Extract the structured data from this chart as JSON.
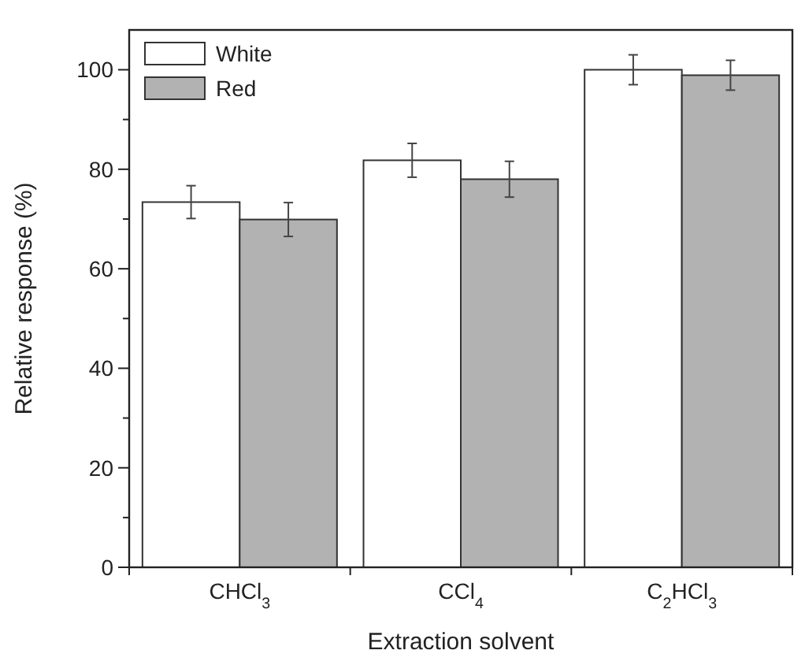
{
  "chart_data": {
    "type": "bar",
    "xlabel": "Extraction solvent",
    "ylabel": "Relative response (%)",
    "categories": [
      "CHCl$_{3}$",
      "CCl$_{4}$",
      "C$_{2}$HCl$_{3}$"
    ],
    "series": [
      {
        "name": "White",
        "color": "#ffffff",
        "values": [
          73.4,
          81.8,
          100
        ],
        "errors": [
          3.3,
          3.4,
          3
        ]
      },
      {
        "name": "Red",
        "color": "#b2b2b2",
        "values": [
          69.9,
          78,
          98.9
        ],
        "errors": [
          3.4,
          3.6,
          3
        ]
      }
    ],
    "ylim": [
      0,
      108
    ],
    "yticks": [
      0,
      {
        "value": 10,
        "label": null
      },
      20,
      {
        "value": 30,
        "label": null
      },
      40,
      {
        "value": 50,
        "label": null
      },
      60,
      {
        "value": 70,
        "label": null
      },
      80,
      {
        "value": 90,
        "label": null
      },
      100
    ],
    "grid": false,
    "legend": "top left"
  }
}
